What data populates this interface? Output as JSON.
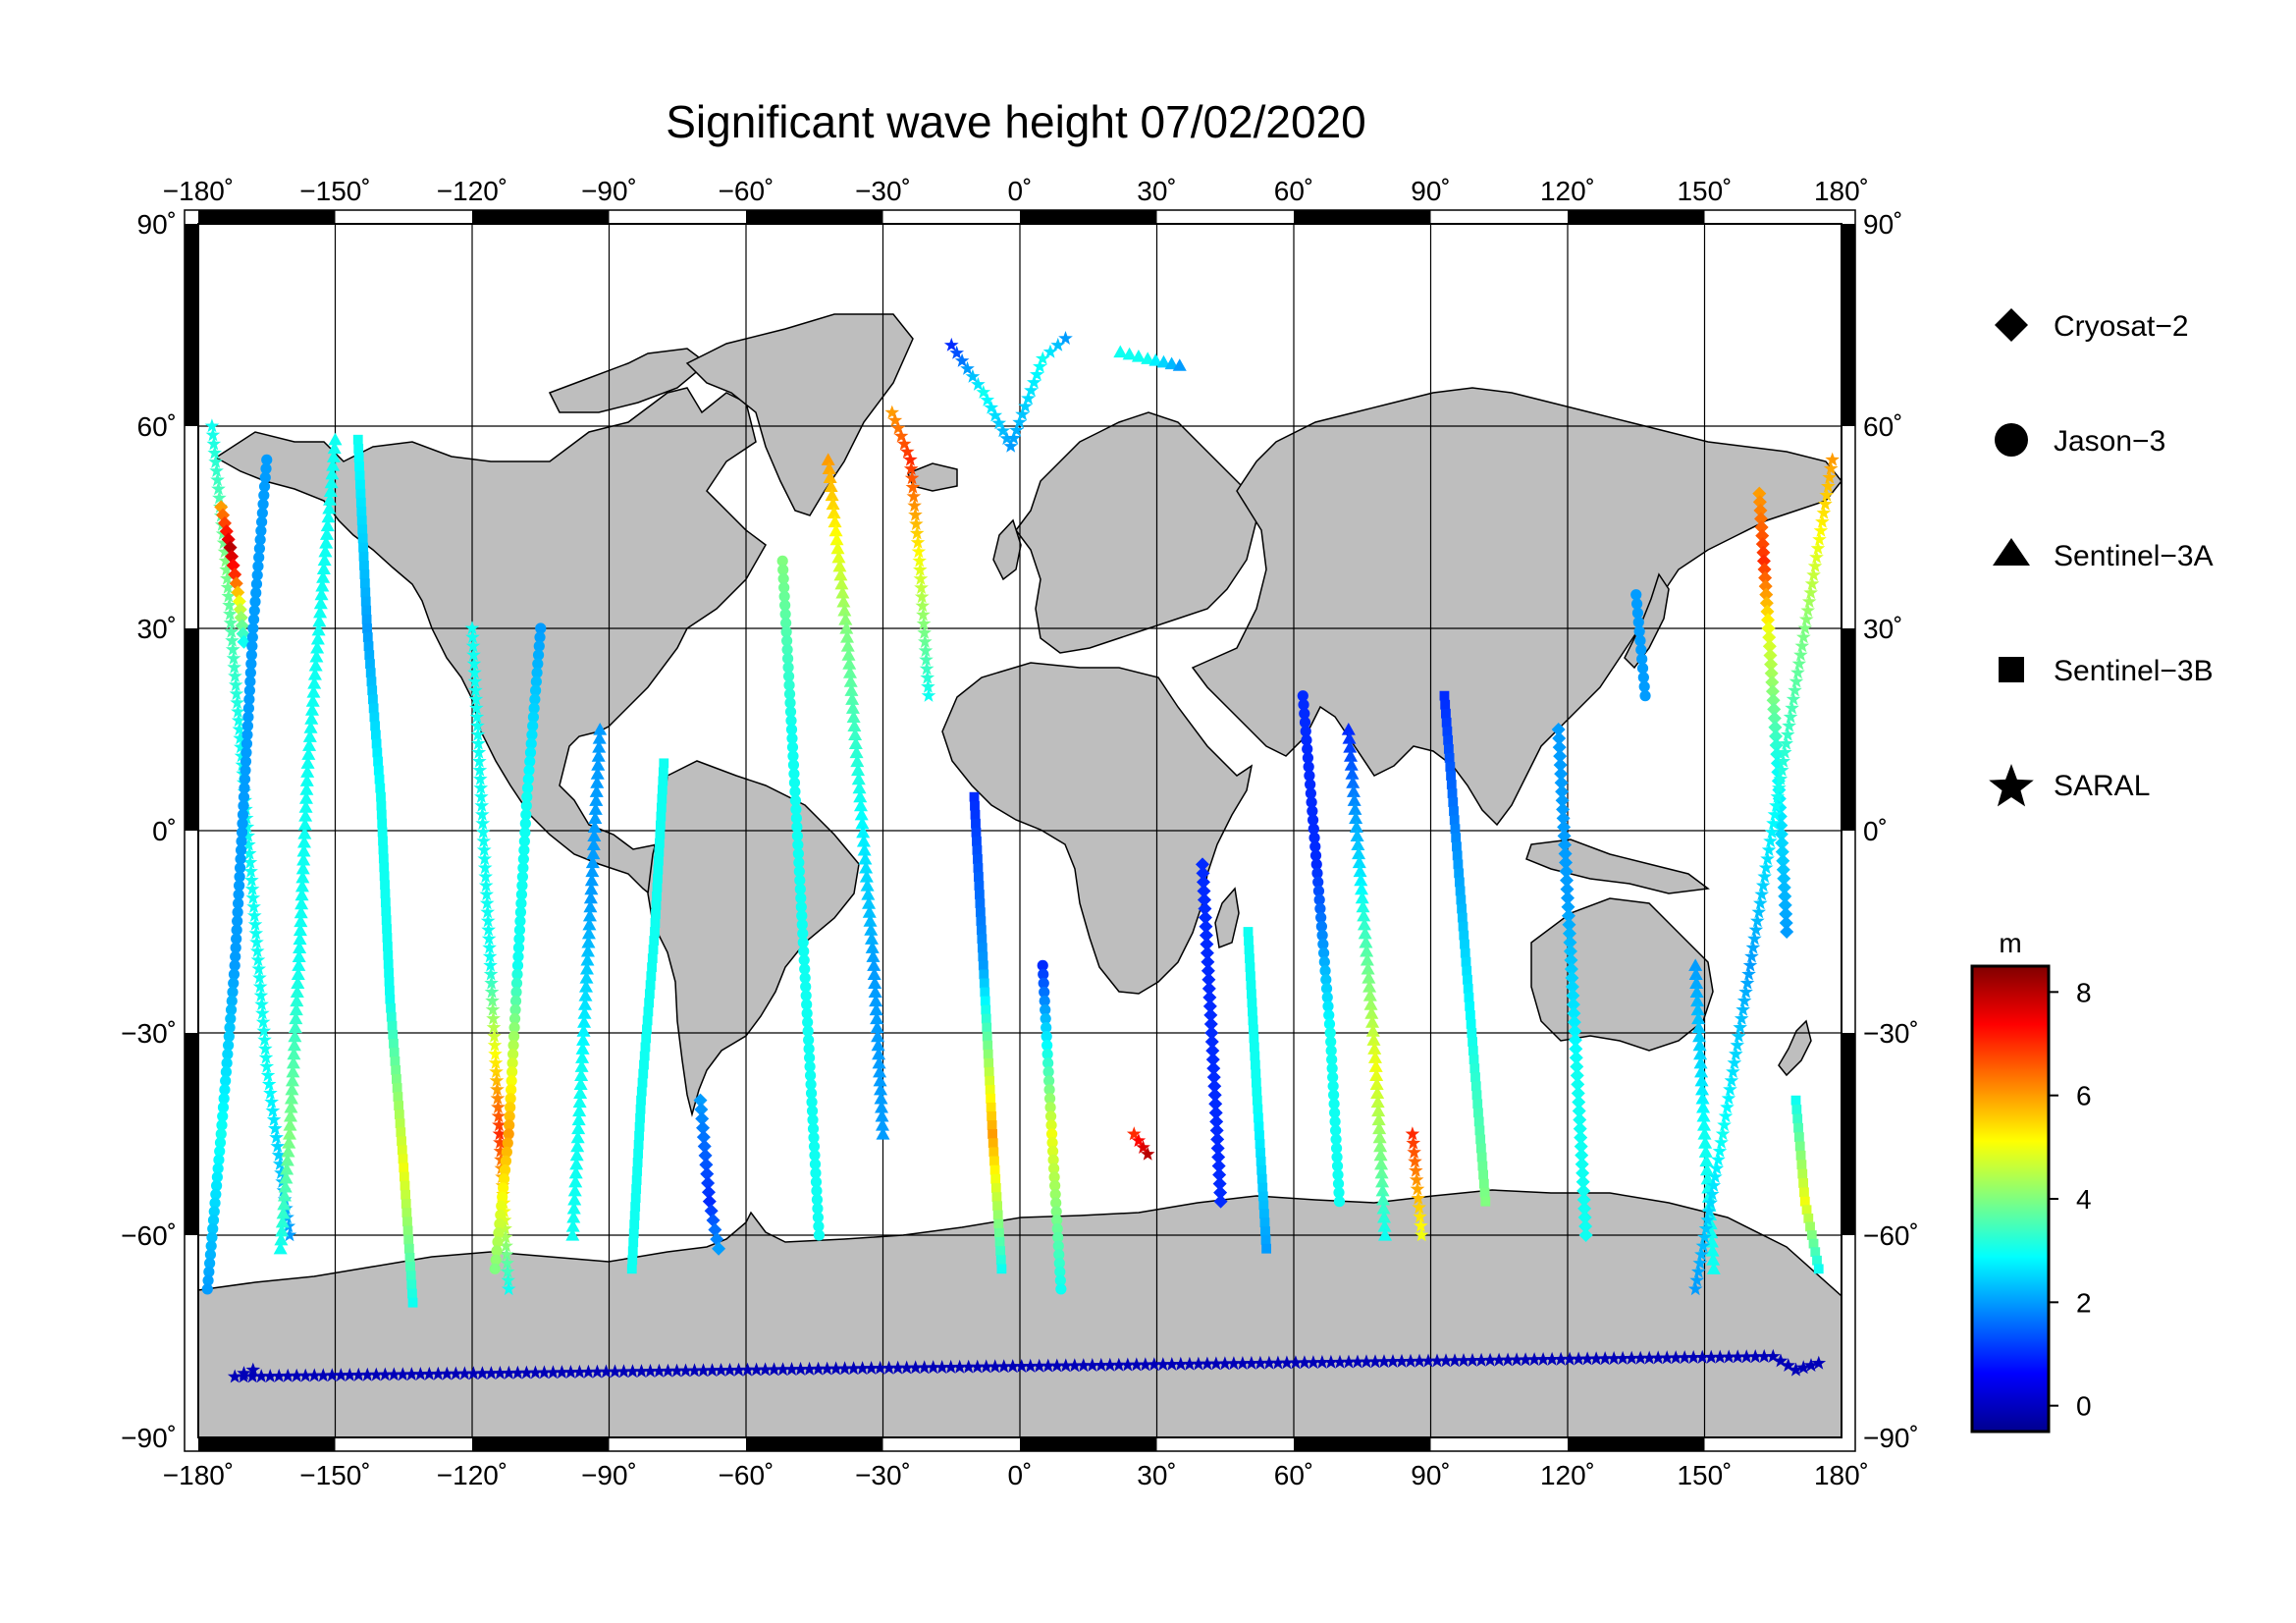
{
  "title": "Significant wave height 07/02/2020",
  "map": {
    "lon_ticks": [
      "−180˚",
      "−150˚",
      "−120˚",
      "−90˚",
      "−60˚",
      "−30˚",
      "0˚",
      "30˚",
      "60˚",
      "90˚",
      "120˚",
      "150˚",
      "180˚"
    ],
    "lat_ticks_left": [
      "90˚",
      "60˚",
      "30˚",
      "0˚",
      "−30˚",
      "−60˚",
      "−90˚"
    ],
    "lat_ticks_right": [
      "90˚",
      "60˚",
      "30˚",
      "0˚",
      "−30˚",
      "−60˚",
      "−90˚"
    ],
    "land_color": "#bebebe",
    "ocean_color": "#ffffff"
  },
  "legend": {
    "items": [
      {
        "label": "Cryosat−2",
        "symbol": "diamond"
      },
      {
        "label": "Jason−3",
        "symbol": "circle"
      },
      {
        "label": "Sentinel−3A",
        "symbol": "triangle"
      },
      {
        "label": "Sentinel−3B",
        "symbol": "square"
      },
      {
        "label": "SARAL",
        "symbol": "star"
      }
    ]
  },
  "colorbar": {
    "unit": "m",
    "ticks": [
      "8",
      "6",
      "4",
      "2",
      "0"
    ],
    "range": [
      -0.5,
      8.5
    ],
    "colormap": "jet"
  },
  "chart_data": {
    "type": "scatter",
    "title": "Significant wave height 07/02/2020",
    "x_axis": "longitude",
    "y_axis": "latitude",
    "xlim": [
      -180,
      180
    ],
    "ylim": [
      -90,
      90
    ],
    "value_unit": "m",
    "tracks": [
      {
        "satellite": "SARAL",
        "symbol": "star",
        "points": [
          [
            -177,
            60,
            3
          ],
          [
            -174,
            40,
            4
          ],
          [
            -171,
            15,
            3
          ],
          [
            -168,
            -10,
            3
          ],
          [
            -165,
            -35,
            3
          ],
          [
            -160,
            -60,
            2
          ]
        ]
      },
      {
        "satellite": "Cryosat-2",
        "symbol": "diamond",
        "points": [
          [
            -175,
            48,
            6
          ],
          [
            -173,
            42,
            8
          ],
          [
            -172,
            38,
            7
          ],
          [
            -171,
            34,
            5
          ],
          [
            -170,
            28,
            3
          ]
        ]
      },
      {
        "satellite": "Jason-3",
        "symbol": "circle",
        "points": [
          [
            -165,
            55,
            2
          ],
          [
            -168,
            30,
            2
          ],
          [
            -170,
            5,
            2
          ],
          [
            -172,
            -20,
            2
          ],
          [
            -175,
            -45,
            3
          ],
          [
            -178,
            -68,
            2
          ]
        ]
      },
      {
        "satellite": "Sentinel-3A",
        "symbol": "triangle",
        "points": [
          [
            -150,
            58,
            3
          ],
          [
            -153,
            35,
            3
          ],
          [
            -156,
            10,
            3
          ],
          [
            -158,
            -20,
            3
          ],
          [
            -160,
            -45,
            4
          ],
          [
            -162,
            -62,
            3
          ]
        ]
      },
      {
        "satellite": "Sentinel-3B",
        "symbol": "square",
        "points": [
          [
            -145,
            58,
            3
          ],
          [
            -143,
            30,
            2
          ],
          [
            -140,
            5,
            3
          ],
          [
            -138,
            -25,
            3
          ],
          [
            -135,
            -50,
            5
          ],
          [
            -133,
            -70,
            3
          ]
        ]
      },
      {
        "satellite": "SARAL",
        "symbol": "star",
        "points": [
          [
            -120,
            30,
            3
          ],
          [
            -118,
            5,
            3
          ],
          [
            -116,
            -20,
            3
          ],
          [
            -114,
            -45,
            7
          ],
          [
            -112,
            -68,
            3
          ]
        ]
      },
      {
        "satellite": "Jason-3",
        "symbol": "circle",
        "points": [
          [
            -105,
            30,
            2
          ],
          [
            -108,
            5,
            3
          ],
          [
            -110,
            -20,
            3
          ],
          [
            -112,
            -45,
            6
          ],
          [
            -115,
            -65,
            4
          ]
        ]
      },
      {
        "satellite": "Sentinel-3A",
        "symbol": "triangle",
        "points": [
          [
            -92,
            15,
            2
          ],
          [
            -94,
            -10,
            2
          ],
          [
            -96,
            -35,
            3
          ],
          [
            -98,
            -60,
            3
          ]
        ]
      },
      {
        "satellite": "Sentinel-3B",
        "symbol": "square",
        "points": [
          [
            -85,
            -65,
            3
          ],
          [
            -83,
            -40,
            3
          ],
          [
            -80,
            -15,
            3
          ],
          [
            -78,
            10,
            3
          ]
        ]
      },
      {
        "satellite": "Cryosat-2",
        "symbol": "diamond",
        "points": [
          [
            -70,
            -40,
            2
          ],
          [
            -68,
            -55,
            1
          ],
          [
            -66,
            -62,
            2
          ]
        ]
      },
      {
        "satellite": "Jason-3",
        "symbol": "circle",
        "points": [
          [
            -52,
            40,
            4
          ],
          [
            -50,
            15,
            3
          ],
          [
            -48,
            -10,
            3
          ],
          [
            -46,
            -35,
            3
          ],
          [
            -44,
            -60,
            3
          ]
        ]
      },
      {
        "satellite": "Sentinel-3A",
        "symbol": "triangle",
        "points": [
          [
            -42,
            55,
            6
          ],
          [
            -38,
            30,
            4
          ],
          [
            -35,
            5,
            3
          ],
          [
            -32,
            -20,
            2
          ],
          [
            -30,
            -45,
            2
          ]
        ]
      },
      {
        "satellite": "SARAL",
        "symbol": "star",
        "points": [
          [
            -28,
            62,
            6
          ],
          [
            -24,
            55,
            7
          ],
          [
            -22,
            40,
            5
          ],
          [
            -20,
            20,
            3
          ]
        ]
      },
      {
        "satellite": "Sentinel-3B",
        "symbol": "square",
        "points": [
          [
            -10,
            5,
            1
          ],
          [
            -8,
            -20,
            2
          ],
          [
            -6,
            -45,
            6
          ],
          [
            -4,
            -65,
            3
          ]
        ]
      },
      {
        "satellite": "Jason-3",
        "symbol": "circle",
        "points": [
          [
            5,
            -20,
            1
          ],
          [
            7,
            -45,
            5
          ],
          [
            9,
            -68,
            3
          ]
        ]
      },
      {
        "satellite": "SARAL",
        "symbol": "star",
        "points": [
          [
            -15,
            72,
            1
          ],
          [
            -8,
            65,
            3
          ],
          [
            -2,
            57,
            2
          ],
          [
            5,
            70,
            3
          ],
          [
            10,
            73,
            2
          ]
        ]
      },
      {
        "satellite": "Sentinel-3A",
        "symbol": "triangle",
        "points": [
          [
            22,
            71,
            3
          ],
          [
            28,
            70,
            3
          ],
          [
            35,
            69,
            2
          ]
        ]
      },
      {
        "satellite": "SARAL",
        "symbol": "star",
        "points": [
          [
            25,
            -45,
            7
          ],
          [
            28,
            -48,
            8
          ]
        ]
      },
      {
        "satellite": "Cryosat-2",
        "symbol": "diamond",
        "points": [
          [
            40,
            -5,
            1
          ],
          [
            42,
            -30,
            1
          ],
          [
            44,
            -55,
            1
          ]
        ]
      },
      {
        "satellite": "Sentinel-3B",
        "symbol": "square",
        "points": [
          [
            50,
            -15,
            3
          ],
          [
            52,
            -40,
            3
          ],
          [
            54,
            -62,
            2
          ]
        ]
      },
      {
        "satellite": "Jason-3",
        "symbol": "circle",
        "points": [
          [
            62,
            20,
            1
          ],
          [
            65,
            -5,
            1
          ],
          [
            68,
            -30,
            3
          ],
          [
            70,
            -55,
            3
          ]
        ]
      },
      {
        "satellite": "Sentinel-3A",
        "symbol": "triangle",
        "points": [
          [
            72,
            15,
            1
          ],
          [
            75,
            -10,
            3
          ],
          [
            78,
            -35,
            5
          ],
          [
            80,
            -60,
            3
          ]
        ]
      },
      {
        "satellite": "SARAL",
        "symbol": "star",
        "points": [
          [
            86,
            -45,
            7
          ],
          [
            88,
            -60,
            5
          ]
        ]
      },
      {
        "satellite": "Sentinel-3B",
        "symbol": "square",
        "points": [
          [
            93,
            20,
            1
          ],
          [
            96,
            -5,
            2
          ],
          [
            99,
            -30,
            3
          ],
          [
            102,
            -55,
            4
          ]
        ]
      },
      {
        "satellite": "Cryosat-2",
        "symbol": "diamond",
        "points": [
          [
            118,
            15,
            2
          ],
          [
            120,
            -10,
            2
          ],
          [
            122,
            -35,
            3
          ],
          [
            124,
            -60,
            3
          ]
        ]
      },
      {
        "satellite": "Jason-3",
        "symbol": "circle",
        "points": [
          [
            135,
            35,
            2
          ],
          [
            137,
            20,
            2
          ]
        ]
      },
      {
        "satellite": "Sentinel-3A",
        "symbol": "triangle",
        "points": [
          [
            148,
            -20,
            2
          ],
          [
            150,
            -45,
            3
          ],
          [
            152,
            -65,
            3
          ]
        ]
      },
      {
        "satellite": "Cryosat-2",
        "symbol": "diamond",
        "points": [
          [
            162,
            50,
            6
          ],
          [
            163,
            40,
            7
          ],
          [
            164,
            30,
            5
          ],
          [
            166,
            10,
            3
          ],
          [
            168,
            -15,
            2
          ]
        ]
      },
      {
        "satellite": "SARAL",
        "symbol": "star",
        "points": [
          [
            178,
            55,
            6
          ],
          [
            172,
            30,
            4
          ],
          [
            166,
            5,
            3
          ],
          [
            160,
            -20,
            2
          ],
          [
            154,
            -45,
            3
          ],
          [
            148,
            -68,
            2
          ]
        ]
      },
      {
        "satellite": "Sentinel-3B",
        "symbol": "square",
        "points": [
          [
            170,
            -40,
            3
          ],
          [
            172,
            -55,
            5
          ],
          [
            175,
            -65,
            3
          ]
        ]
      },
      {
        "satellite": "SARAL",
        "symbol": "star",
        "points": [
          [
            -168,
            -80,
            0
          ],
          [
            -172,
            -81,
            0
          ],
          [
            165,
            -78,
            0
          ],
          [
            170,
            -80,
            0
          ],
          [
            175,
            -79,
            0
          ]
        ]
      }
    ]
  }
}
